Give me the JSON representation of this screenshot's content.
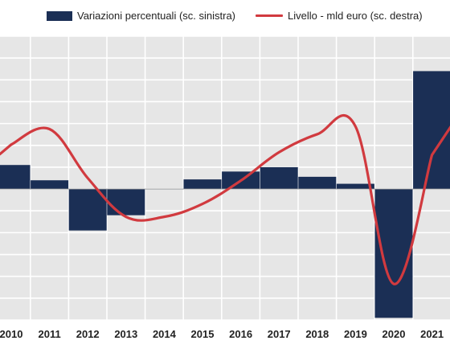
{
  "legend": {
    "bar_label": "Variazioni percentuali (sc. sinistra)",
    "line_label": "Livello - mld euro (sc. destra)"
  },
  "colors": {
    "plot_background": "#e6e6e6",
    "gridline": "#ffffff",
    "bar": "#1b2f55",
    "line": "#d13a3f",
    "text": "#222222"
  },
  "chart_data": {
    "type": "bar+line",
    "categories": [
      "2010",
      "2011",
      "2012",
      "2013",
      "2014",
      "2015",
      "2016",
      "2017",
      "2018",
      "2019",
      "2020",
      "2021"
    ],
    "series": [
      {
        "name": "Variazioni percentuali (sc. sinistra)",
        "type": "bar",
        "axis": "left",
        "values": [
          5.5,
          2.0,
          -9.5,
          -6.0,
          0.0,
          2.2,
          4.0,
          5.0,
          2.8,
          1.2,
          -29.5,
          27.0
        ]
      },
      {
        "name": "Livello - mld euro (sc. destra)",
        "type": "line",
        "axis": "right",
        "values": [
          49.0,
          52.0,
          42.5,
          35.0,
          35.0,
          37.5,
          42.0,
          47.5,
          51.0,
          52.5,
          22.0,
          47.0
        ]
      }
    ],
    "y_left_range": [
      -30,
      35
    ],
    "y_right_range": [
      15,
      70
    ],
    "y_left_axis_visible": false,
    "y_right_axis_visible": false,
    "grid": true,
    "legend_position": "top"
  }
}
